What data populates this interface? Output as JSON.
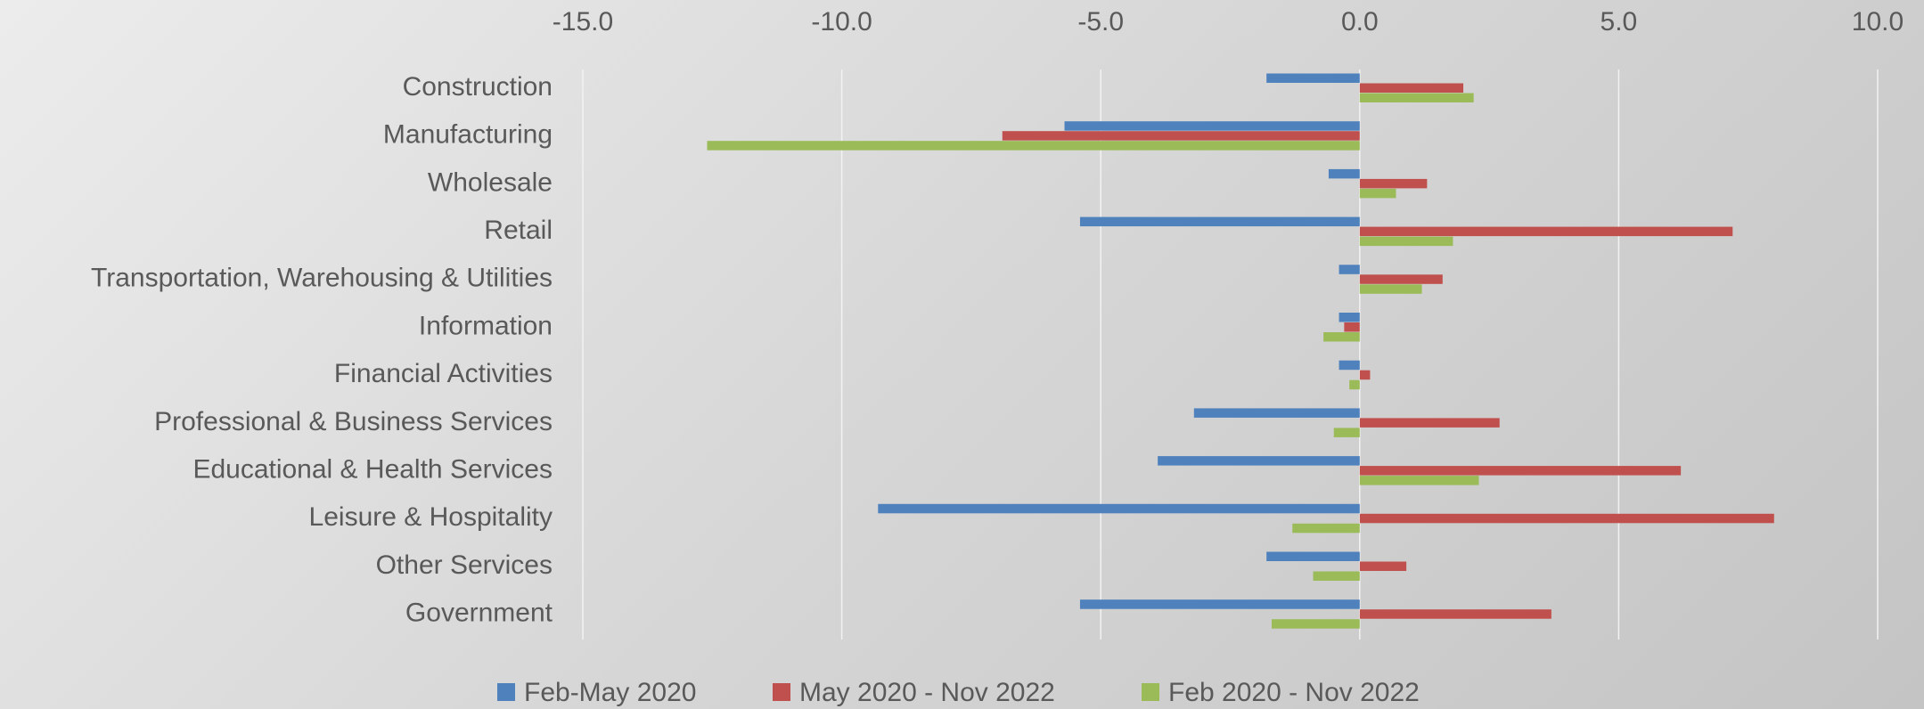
{
  "chart_data": {
    "type": "bar",
    "orientation": "horizontal",
    "categories": [
      "Construction",
      "Manufacturing",
      "Wholesale",
      "Retail",
      "Transportation, Warehousing & Utilities",
      "Information",
      "Financial Activities",
      "Professional & Business Services",
      "Educational & Health Services",
      "Leisure & Hospitality",
      "Other Services",
      "Government"
    ],
    "series": [
      {
        "name": "Feb-May 2020",
        "color": "#4f81bd",
        "values": [
          -1.8,
          -5.7,
          -0.6,
          -5.4,
          -0.4,
          -0.4,
          -0.4,
          -3.2,
          -3.9,
          -9.3,
          -1.8,
          -5.4
        ]
      },
      {
        "name": "May 2020 - Nov 2022",
        "color": "#c0504d",
        "values": [
          2.0,
          -6.9,
          1.3,
          7.2,
          1.6,
          -0.3,
          0.2,
          2.7,
          6.2,
          8.0,
          0.9,
          3.7
        ]
      },
      {
        "name": "Feb 2020 - Nov 2022",
        "color": "#9bbb59",
        "values": [
          2.2,
          -12.6,
          0.7,
          1.8,
          1.2,
          -0.7,
          -0.2,
          -0.5,
          2.3,
          -1.3,
          -0.9,
          -1.7
        ]
      }
    ],
    "xlim": [
      -15,
      10
    ],
    "xticks": [
      {
        "value": -15,
        "label": "-15.0"
      },
      {
        "value": -10,
        "label": "-10.0"
      },
      {
        "value": -5,
        "label": "-5.0"
      },
      {
        "value": 0,
        "label": "0.0"
      },
      {
        "value": 5,
        "label": "5.0"
      },
      {
        "value": 10,
        "label": "10.0"
      }
    ],
    "grid": true,
    "legend": "bottom"
  }
}
